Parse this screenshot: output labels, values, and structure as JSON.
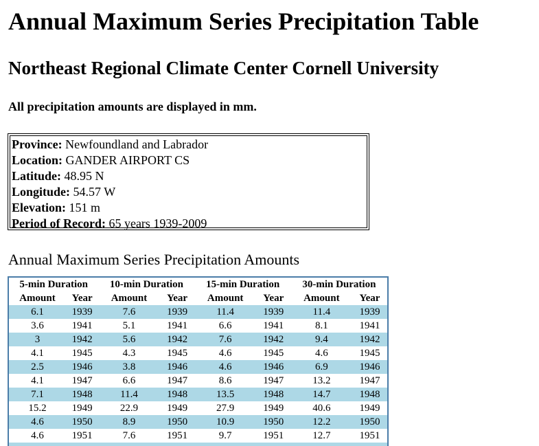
{
  "page": {
    "title": "Annual Maximum Series Precipitation Table",
    "subtitle": "Northeast Regional Climate Center Cornell University",
    "units_note": "All precipitation amounts are displayed in mm."
  },
  "station": {
    "province_label": "Province:",
    "province": "Newfoundland and Labrador",
    "location_label": "Location:",
    "location": "GANDER AIRPORT CS",
    "latitude_label": "Latitude:",
    "latitude": "48.95 N",
    "longitude_label": "Longitude:",
    "longitude": "54.57 W",
    "elevation_label": "Elevation:",
    "elevation": "151 m",
    "period_label": "Period of Record:",
    "period": "65 years 1939-2009"
  },
  "table": {
    "section_title": "Annual Maximum Series Precipitation Amounts",
    "durations": [
      "5-min Duration",
      "10-min Duration",
      "15-min Duration",
      "30-min Duration"
    ],
    "subheaders": [
      "Amount",
      "Year",
      "Amount",
      "Year",
      "Amount",
      "Year",
      "Amount",
      "Year"
    ],
    "rows": [
      [
        "6.1",
        "1939",
        "7.6",
        "1939",
        "11.4",
        "1939",
        "11.4",
        "1939"
      ],
      [
        "3.6",
        "1941",
        "5.1",
        "1941",
        "6.6",
        "1941",
        "8.1",
        "1941"
      ],
      [
        "3",
        "1942",
        "5.6",
        "1942",
        "7.6",
        "1942",
        "9.4",
        "1942"
      ],
      [
        "4.1",
        "1945",
        "4.3",
        "1945",
        "4.6",
        "1945",
        "4.6",
        "1945"
      ],
      [
        "2.5",
        "1946",
        "3.8",
        "1946",
        "4.6",
        "1946",
        "6.9",
        "1946"
      ],
      [
        "4.1",
        "1947",
        "6.6",
        "1947",
        "8.6",
        "1947",
        "13.2",
        "1947"
      ],
      [
        "7.1",
        "1948",
        "11.4",
        "1948",
        "13.5",
        "1948",
        "14.7",
        "1948"
      ],
      [
        "15.2",
        "1949",
        "22.9",
        "1949",
        "27.9",
        "1949",
        "40.6",
        "1949"
      ],
      [
        "4.6",
        "1950",
        "8.9",
        "1950",
        "10.9",
        "1950",
        "12.2",
        "1950"
      ],
      [
        "4.6",
        "1951",
        "7.6",
        "1951",
        "9.7",
        "1951",
        "12.7",
        "1951"
      ]
    ]
  },
  "colors": {
    "row_shade": "#add8e6",
    "table_border": "#4a7ca8"
  }
}
